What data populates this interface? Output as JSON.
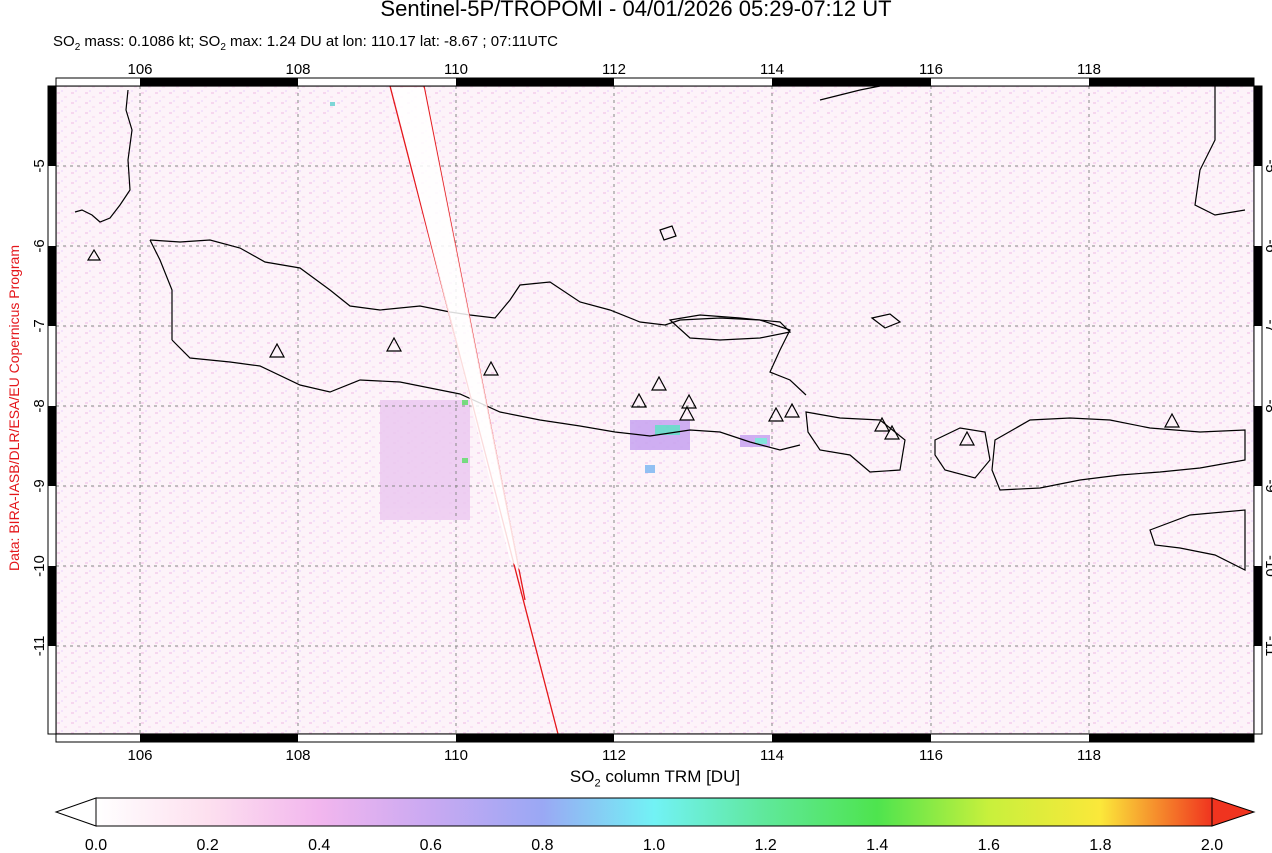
{
  "header": {
    "title": "Sentinel-5P/TROPOMI - 04/01/2026 05:29-07:12 UT",
    "subtitle_parts": {
      "mass_prefix": "SO",
      "mass_sub": "2",
      "mass_text": " mass: 0.1086 kt; SO",
      "max_sub": "2",
      "max_text": " max: 1.24 DU at lon: 110.17 lat: -8.67 ; 07:11UTC"
    }
  },
  "credit": "Data: BIRA-IASB/DLR/ESA/EU Copernicus Program",
  "map": {
    "lon_ticks": [
      "106",
      "108",
      "110",
      "112",
      "114",
      "116",
      "118"
    ],
    "lat_ticks": [
      "-5",
      "-6",
      "-7",
      "-8",
      "-9",
      "-10",
      "-11"
    ],
    "volcano_count": 14
  },
  "colorbar": {
    "title_prefix": "SO",
    "title_sub": "2",
    "title_suffix": " column TRM [DU]",
    "ticks": [
      "0.0",
      "0.2",
      "0.4",
      "0.6",
      "0.8",
      "1.0",
      "1.2",
      "1.4",
      "1.6",
      "1.8",
      "2.0"
    ],
    "colors": [
      "#ffffff",
      "#fde0ef",
      "#f2b6ee",
      "#c9a9f2",
      "#9aa8f4",
      "#72f2f5",
      "#5fe89a",
      "#4ee44e",
      "#c8f03c",
      "#fbe83a",
      "#f59a2a",
      "#f0341f"
    ]
  }
}
